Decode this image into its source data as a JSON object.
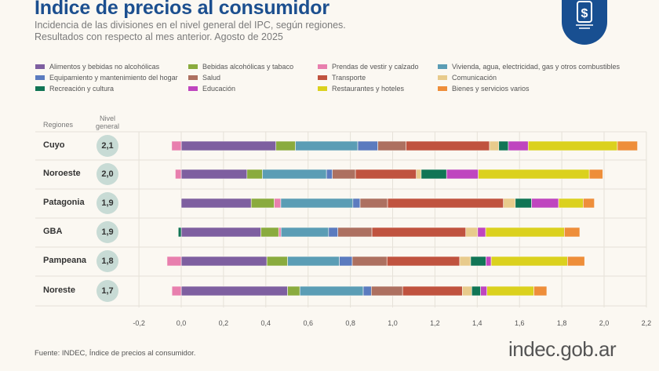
{
  "header": {
    "title": "Indice de precios al consumidor",
    "subtitle_line1": "Incidencia de las divisiones en el nivel general del IPC, según regiones.",
    "subtitle_line2": "Resultados con respecto al mes anterior. Agosto de 2025",
    "logo_icon": "price-tag-dollar-icon"
  },
  "chart_data": {
    "type": "bar",
    "orientation": "horizontal",
    "stacked": true,
    "categories": [
      "Cuyo",
      "Noroeste",
      "Patagonia",
      "GBA",
      "Pampeana",
      "Noreste"
    ],
    "category_header": "Regiones",
    "level_header": "Nivel general",
    "levels": [
      "2,1",
      "2,0",
      "1,9",
      "1,9",
      "1,8",
      "1,7"
    ],
    "xlim": [
      -0.2,
      2.2
    ],
    "xticks": [
      "-0,2",
      "0,0",
      "0,2",
      "0,4",
      "0,6",
      "0,8",
      "1,0",
      "1,2",
      "1,4",
      "1,6",
      "1,8",
      "2,0",
      "2,2"
    ],
    "grid": true,
    "legend_position": "top",
    "series": [
      {
        "name": "Alimentos y bebidas no alcohólicas",
        "color": "#7e5fa0",
        "values": [
          0.448,
          0.311,
          0.331,
          0.377,
          0.405,
          0.503
        ]
      },
      {
        "name": "Bebidas alcohólicas y tabaco",
        "color": "#8aab3e",
        "values": [
          0.092,
          0.073,
          0.109,
          0.084,
          0.098,
          0.058
        ]
      },
      {
        "name": "Prendas de vestir y calzado",
        "color": "#e87fae",
        "values": [
          -0.045,
          -0.028,
          0.031,
          0.011,
          -0.067,
          -0.044
        ]
      },
      {
        "name": "Vivienda, agua, electricidad, gas y otros combustibles",
        "color": "#5b9db5",
        "values": [
          0.295,
          0.303,
          0.341,
          0.225,
          0.245,
          0.3
        ]
      },
      {
        "name": "Equipamiento y mantenimiento del hogar",
        "color": "#5b7bbf",
        "values": [
          0.095,
          0.028,
          0.034,
          0.044,
          0.061,
          0.038
        ]
      },
      {
        "name": "Salud",
        "color": "#ad7060",
        "values": [
          0.133,
          0.109,
          0.13,
          0.161,
          0.164,
          0.148
        ]
      },
      {
        "name": "Transporte",
        "color": "#c0533f",
        "values": [
          0.395,
          0.288,
          0.548,
          0.444,
          0.344,
          0.283
        ]
      },
      {
        "name": "Comunicación",
        "color": "#e8cb8c",
        "values": [
          0.044,
          0.023,
          0.056,
          0.056,
          0.052,
          0.044
        ]
      },
      {
        "name": "Recreación y cultura",
        "color": "#117555",
        "values": [
          0.045,
          0.12,
          0.077,
          -0.014,
          0.072,
          0.042
        ]
      },
      {
        "name": "Educación",
        "color": "#bf45bf",
        "values": [
          0.094,
          0.15,
          0.128,
          0.038,
          0.025,
          0.03
        ]
      },
      {
        "name": "Restaurantes y hoteles",
        "color": "#dbd11e",
        "values": [
          0.422,
          0.525,
          0.116,
          0.372,
          0.361,
          0.222
        ]
      },
      {
        "name": "Bienes y servicios varios",
        "color": "#ee8e3a",
        "values": [
          0.095,
          0.064,
          0.053,
          0.073,
          0.081,
          0.061
        ]
      }
    ]
  },
  "footer": {
    "source": "Fuente: INDEC, Índice de precios al consumidor.",
    "brand": "indec.gob.ar"
  }
}
